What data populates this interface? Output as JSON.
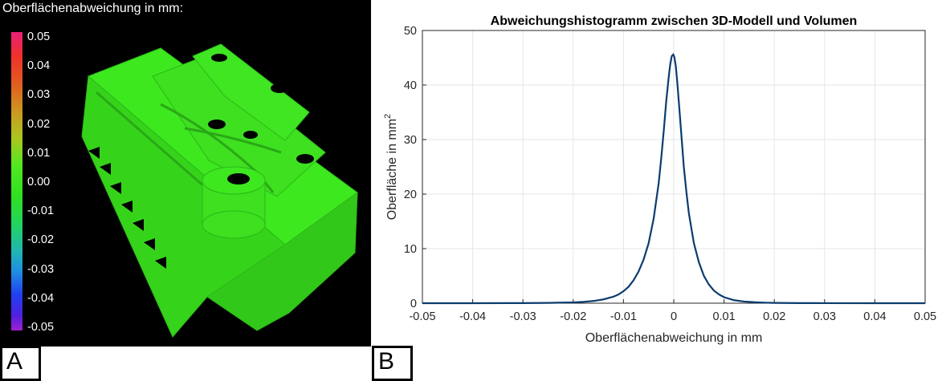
{
  "panel_a": {
    "letter": "A",
    "colorbar_title": "Oberflächenabweichung in mm:",
    "colorbar_labels": [
      "0.05",
      "0.04",
      "0.03",
      "0.02",
      "0.01",
      "0.00",
      "-0.01",
      "-0.02",
      "-0.03",
      "-0.04",
      "-0.05"
    ],
    "colorbar_range": [
      -0.05,
      0.05
    ],
    "colors": {
      "background": "#000000",
      "model": "#3de81f",
      "max": "#e8207a",
      "min": "#a020d0"
    }
  },
  "panel_b": {
    "letter": "B"
  },
  "chart_data": {
    "type": "line",
    "title": "Abweichungshistogramm zwischen 3D-Modell und Volumen",
    "xlabel": "Oberflächenabweichung in mm",
    "ylabel_main": "Oberfläche in mm",
    "ylabel_superscript": "2",
    "xlim": [
      -0.05,
      0.05
    ],
    "ylim": [
      0,
      50
    ],
    "xticks": [
      "-0.05",
      "-0.04",
      "-0.03",
      "-0.02",
      "-0.01",
      "0",
      "0.01",
      "0.02",
      "0.03",
      "0.04",
      "0.05"
    ],
    "yticks": [
      "0",
      "10",
      "20",
      "30",
      "40",
      "50"
    ],
    "grid": true,
    "line_color": "#0b3c6e",
    "series": [
      {
        "x": [
          -0.05,
          -0.04,
          -0.03,
          -0.025,
          -0.02,
          -0.018,
          -0.016,
          -0.014,
          -0.012,
          -0.011,
          -0.01,
          -0.009,
          -0.008,
          -0.007,
          -0.006,
          -0.005,
          -0.004,
          -0.003,
          -0.0025,
          -0.002,
          -0.0015,
          -0.001,
          -0.0007,
          -0.0004,
          -0.0001,
          0.0001,
          0.0004,
          0.0007,
          0.001,
          0.0015,
          0.002,
          0.0025,
          0.003,
          0.004,
          0.005,
          0.006,
          0.007,
          0.008,
          0.009,
          0.01,
          0.012,
          0.014,
          0.016,
          0.018,
          0.02,
          0.025,
          0.03,
          0.04,
          0.05
        ],
        "y": [
          0,
          0,
          0.02,
          0.05,
          0.15,
          0.25,
          0.4,
          0.7,
          1.2,
          1.6,
          2.2,
          3.0,
          4.2,
          5.8,
          8.0,
          11.0,
          15.5,
          22.0,
          26.5,
          31.5,
          37.0,
          41.5,
          43.8,
          45.3,
          45.6,
          45.2,
          43.5,
          40.5,
          37.0,
          31.0,
          25.0,
          20.5,
          16.5,
          11.0,
          7.5,
          5.0,
          3.4,
          2.3,
          1.6,
          1.1,
          0.55,
          0.3,
          0.18,
          0.1,
          0.06,
          0.02,
          0.01,
          0,
          0
        ]
      }
    ]
  }
}
